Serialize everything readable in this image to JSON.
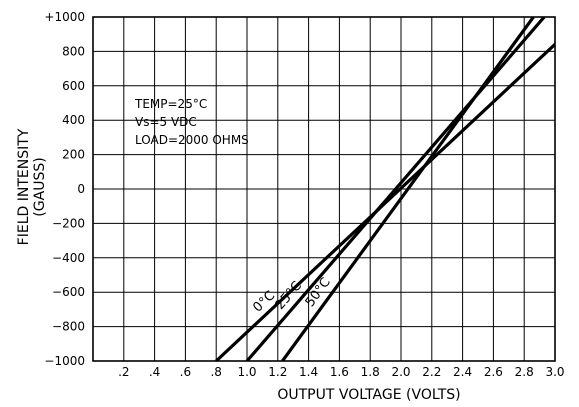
{
  "chart_data": {
    "type": "line",
    "xlabel": "OUTPUT VOLTAGE (VOLTS)",
    "ylabel": "FIELD INTENSITY",
    "ylabel_unit": "(GAUSS)",
    "xlim": [
      0.0,
      3.0
    ],
    "ylim": [
      -1000,
      1000
    ],
    "x_ticks": [
      0.2,
      0.4,
      0.6,
      0.8,
      1.0,
      1.2,
      1.4,
      1.6,
      1.8,
      2.0,
      2.2,
      2.4,
      2.6,
      2.8,
      3.0
    ],
    "x_tick_labels": [
      ".2",
      ".4",
      ".6",
      ".8",
      "1.0",
      "1.2",
      "1.4",
      "1.6",
      "1.8",
      "2.0",
      "2.2",
      "2.4",
      "2.6",
      "2.8",
      "3.0"
    ],
    "y_ticks": [
      1000,
      800,
      600,
      400,
      200,
      0,
      -200,
      -400,
      -600,
      -800,
      -1000
    ],
    "y_tick_labels": [
      "+1000",
      "800",
      "600",
      "400",
      "200",
      "0",
      "−200",
      "−400",
      "−600",
      "−800",
      "−1000"
    ],
    "grid": true,
    "annotation": [
      "TEMP=25°C",
      "Vs=5 VDC",
      "LOAD=2000 OHMS"
    ],
    "series": [
      {
        "name": "0°C",
        "x": [
          0.8,
          3.07
        ],
        "y": [
          -1000,
          900
        ]
      },
      {
        "name": "25°C",
        "x": [
          1.0,
          2.93
        ],
        "y": [
          -1000,
          1000
        ]
      },
      {
        "name": "50°C",
        "x": [
          1.23,
          2.86
        ],
        "y": [
          -1000,
          1000
        ]
      }
    ]
  }
}
